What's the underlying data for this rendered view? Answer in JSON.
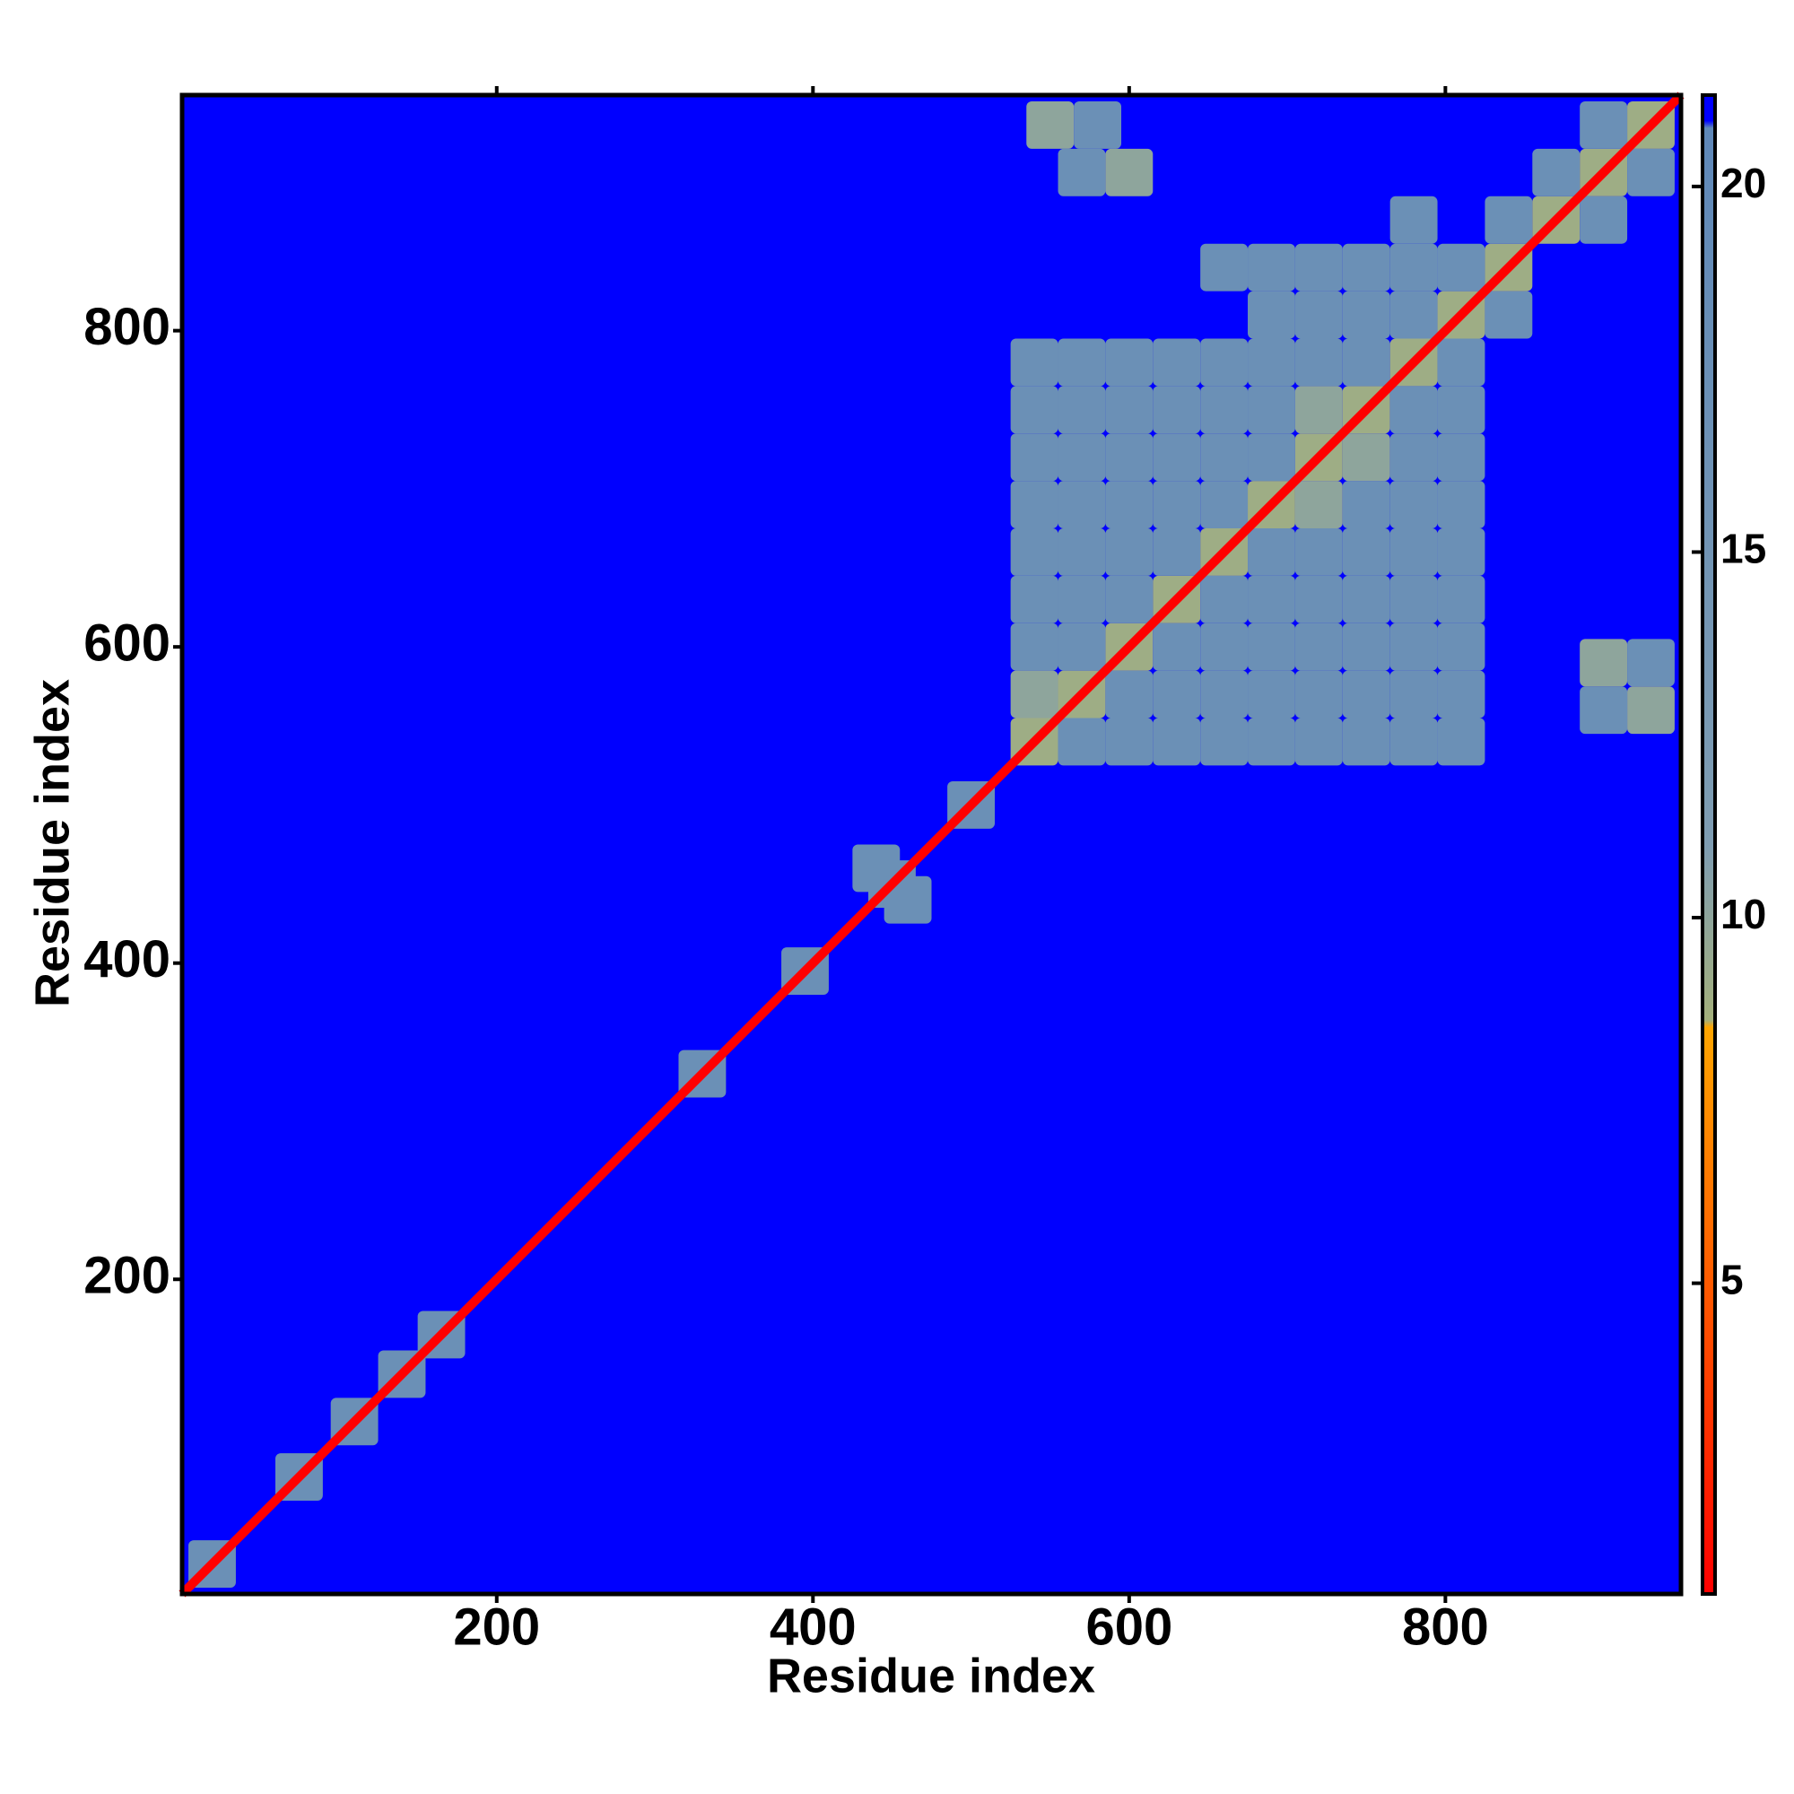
{
  "chart_data": {
    "type": "heatmap",
    "xlabel": "Residue index",
    "ylabel": "Residue index",
    "xlim": [
      1,
      949
    ],
    "ylim": [
      1,
      949
    ],
    "xticks": [
      200,
      400,
      600,
      800
    ],
    "yticks": [
      200,
      400,
      600,
      800
    ],
    "background": 21,
    "colorbar": {
      "clim": [
        0.75,
        21.25
      ],
      "ticks": [
        5,
        10,
        15,
        20
      ]
    },
    "colorscale": [
      {
        "value": 0.75,
        "color": "#ff0000"
      },
      {
        "value": 8.5,
        "color": "#ffa500"
      },
      {
        "value": 8.6,
        "color": "#a4b07c"
      },
      {
        "value": 11,
        "color": "#7f9db2"
      },
      {
        "value": 20.8,
        "color": "#5f88b8"
      },
      {
        "value": 20.9,
        "color": "#0000ff"
      },
      {
        "value": 21.25,
        "color": "#0000ff"
      }
    ],
    "contacts": {
      "x": [
        20,
        75,
        110,
        140,
        165,
        330,
        395,
        450,
        500,
        440,
        460,
        540,
        570,
        600,
        630,
        660,
        690,
        720,
        750,
        780,
        810,
        540,
        570,
        600,
        630,
        660,
        690,
        720,
        750,
        780,
        810,
        540,
        570,
        600,
        630,
        660,
        690,
        720,
        750,
        780,
        810,
        540,
        570,
        600,
        630,
        660,
        690,
        720,
        750,
        780,
        810,
        540,
        570,
        600,
        630,
        660,
        690,
        720,
        750,
        780,
        810,
        540,
        570,
        600,
        630,
        660,
        690,
        720,
        750,
        780,
        810,
        540,
        570,
        600,
        630,
        660,
        690,
        720,
        750,
        780,
        810,
        540,
        570,
        600,
        630,
        660,
        690,
        720,
        750,
        780,
        810,
        540,
        570,
        600,
        630,
        660,
        690,
        720,
        750,
        780,
        810,
        690,
        720,
        750,
        780,
        810,
        840,
        660,
        690,
        720,
        750,
        780,
        810,
        840,
        780,
        840,
        870,
        900,
        870,
        900,
        930,
        900,
        930,
        550,
        580,
        600,
        570,
        900,
        930,
        930,
        900
      ],
      "y": [
        20,
        75,
        110,
        140,
        165,
        330,
        395,
        450,
        500,
        460,
        440,
        540,
        540,
        540,
        540,
        540,
        540,
        540,
        540,
        540,
        540,
        570,
        570,
        570,
        570,
        570,
        570,
        570,
        570,
        570,
        570,
        600,
        600,
        600,
        600,
        600,
        600,
        600,
        600,
        600,
        600,
        630,
        630,
        630,
        630,
        630,
        630,
        630,
        630,
        630,
        630,
        660,
        660,
        660,
        660,
        660,
        660,
        660,
        660,
        660,
        660,
        690,
        690,
        690,
        690,
        690,
        690,
        690,
        690,
        690,
        690,
        720,
        720,
        720,
        720,
        720,
        720,
        720,
        720,
        720,
        720,
        750,
        750,
        750,
        750,
        750,
        750,
        750,
        750,
        750,
        750,
        780,
        780,
        780,
        780,
        780,
        780,
        780,
        780,
        780,
        780,
        810,
        810,
        810,
        810,
        810,
        810,
        840,
        840,
        840,
        840,
        840,
        840,
        840,
        870,
        870,
        870,
        870,
        900,
        900,
        900,
        930,
        930,
        930,
        930,
        900,
        900,
        560,
        560,
        590,
        590
      ],
      "values": [
        17,
        17,
        17,
        17,
        17,
        17,
        17,
        17,
        17,
        17,
        17,
        9,
        17,
        17,
        17,
        17,
        17,
        17,
        17,
        17,
        17,
        10,
        9,
        17,
        17,
        17,
        17,
        17,
        17,
        17,
        17,
        17,
        17,
        9,
        17,
        17,
        17,
        17,
        17,
        17,
        17,
        17,
        17,
        17,
        9,
        17,
        17,
        17,
        17,
        17,
        17,
        17,
        17,
        17,
        17,
        9,
        17,
        17,
        17,
        17,
        17,
        17,
        17,
        17,
        17,
        17,
        9,
        10,
        17,
        17,
        17,
        17,
        17,
        17,
        17,
        17,
        17,
        9,
        10,
        17,
        17,
        17,
        17,
        17,
        17,
        17,
        17,
        10,
        9,
        17,
        17,
        17,
        17,
        17,
        17,
        17,
        17,
        17,
        17,
        9,
        17,
        17,
        17,
        17,
        17,
        9,
        17,
        17,
        17,
        17,
        17,
        17,
        17,
        9,
        17,
        17,
        9,
        17,
        17,
        9,
        17,
        17,
        9,
        10,
        17,
        10,
        17,
        17,
        10,
        17,
        10
      ]
    },
    "diagonal": {
      "x": [
        1,
        949
      ],
      "y": [
        1,
        949
      ],
      "color": "#ff0000"
    }
  }
}
